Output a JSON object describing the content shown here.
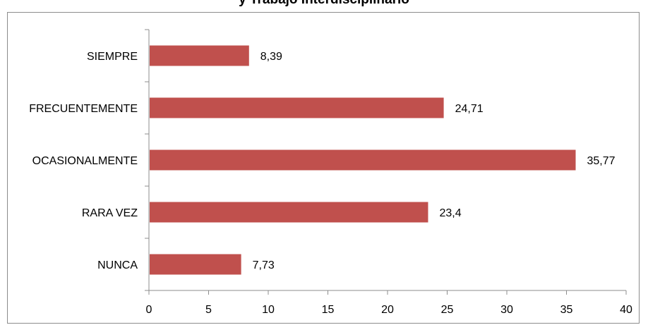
{
  "chart_data": {
    "type": "bar",
    "orientation": "horizontal",
    "title": "y Trabajo Interdisciplinario",
    "categories": [
      "SIEMPRE",
      "FRECUENTEMENTE",
      "OCASIONALMENTE",
      "RARA VEZ",
      "NUNCA"
    ],
    "values": [
      8.39,
      24.71,
      35.77,
      23.4,
      7.73
    ],
    "value_labels": [
      "8,39",
      "24,71",
      "35,77",
      "23,4",
      "7,73"
    ],
    "xlim": [
      0,
      40
    ],
    "xticks": [
      0,
      5,
      10,
      15,
      20,
      25,
      30,
      35,
      40
    ],
    "grid": false,
    "legend": "none",
    "bar_color": "#c0504d"
  }
}
